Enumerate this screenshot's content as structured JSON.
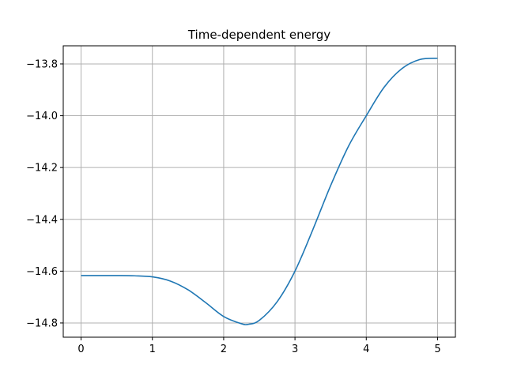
{
  "chart_data": {
    "type": "line",
    "title": "Time-dependent energy",
    "xlabel": "",
    "ylabel": "",
    "xlim": [
      -0.25,
      5.25
    ],
    "ylim": [
      -14.855,
      -13.73
    ],
    "xticks": [
      0,
      1,
      2,
      3,
      4,
      5
    ],
    "xtick_labels": [
      "0",
      "1",
      "2",
      "3",
      "4",
      "5"
    ],
    "yticks": [
      -14.8,
      -14.6,
      -14.4,
      -14.2,
      -14.0,
      -13.8
    ],
    "ytick_labels": [
      "−14.8",
      "−14.6",
      "−14.4",
      "−14.2",
      "−14.0",
      "−13.8"
    ],
    "grid": true,
    "legend": "none",
    "series": [
      {
        "color": "#1f77b4",
        "x": [
          0,
          0.25,
          0.5,
          0.75,
          1.0,
          1.25,
          1.5,
          1.75,
          2.0,
          2.25,
          2.35,
          2.5,
          2.75,
          3.0,
          3.25,
          3.5,
          3.75,
          4.0,
          4.25,
          4.5,
          4.75,
          5.0
        ],
        "y": [
          -14.617,
          -14.617,
          -14.617,
          -14.618,
          -14.622,
          -14.638,
          -14.672,
          -14.722,
          -14.775,
          -14.803,
          -14.805,
          -14.79,
          -14.718,
          -14.6,
          -14.44,
          -14.27,
          -14.118,
          -14.0,
          -13.89,
          -13.818,
          -13.783,
          -13.778
        ]
      }
    ],
    "style": {
      "axes_color": "#000000",
      "grid_color": "#b0b0b0",
      "background": "#ffffff"
    }
  }
}
